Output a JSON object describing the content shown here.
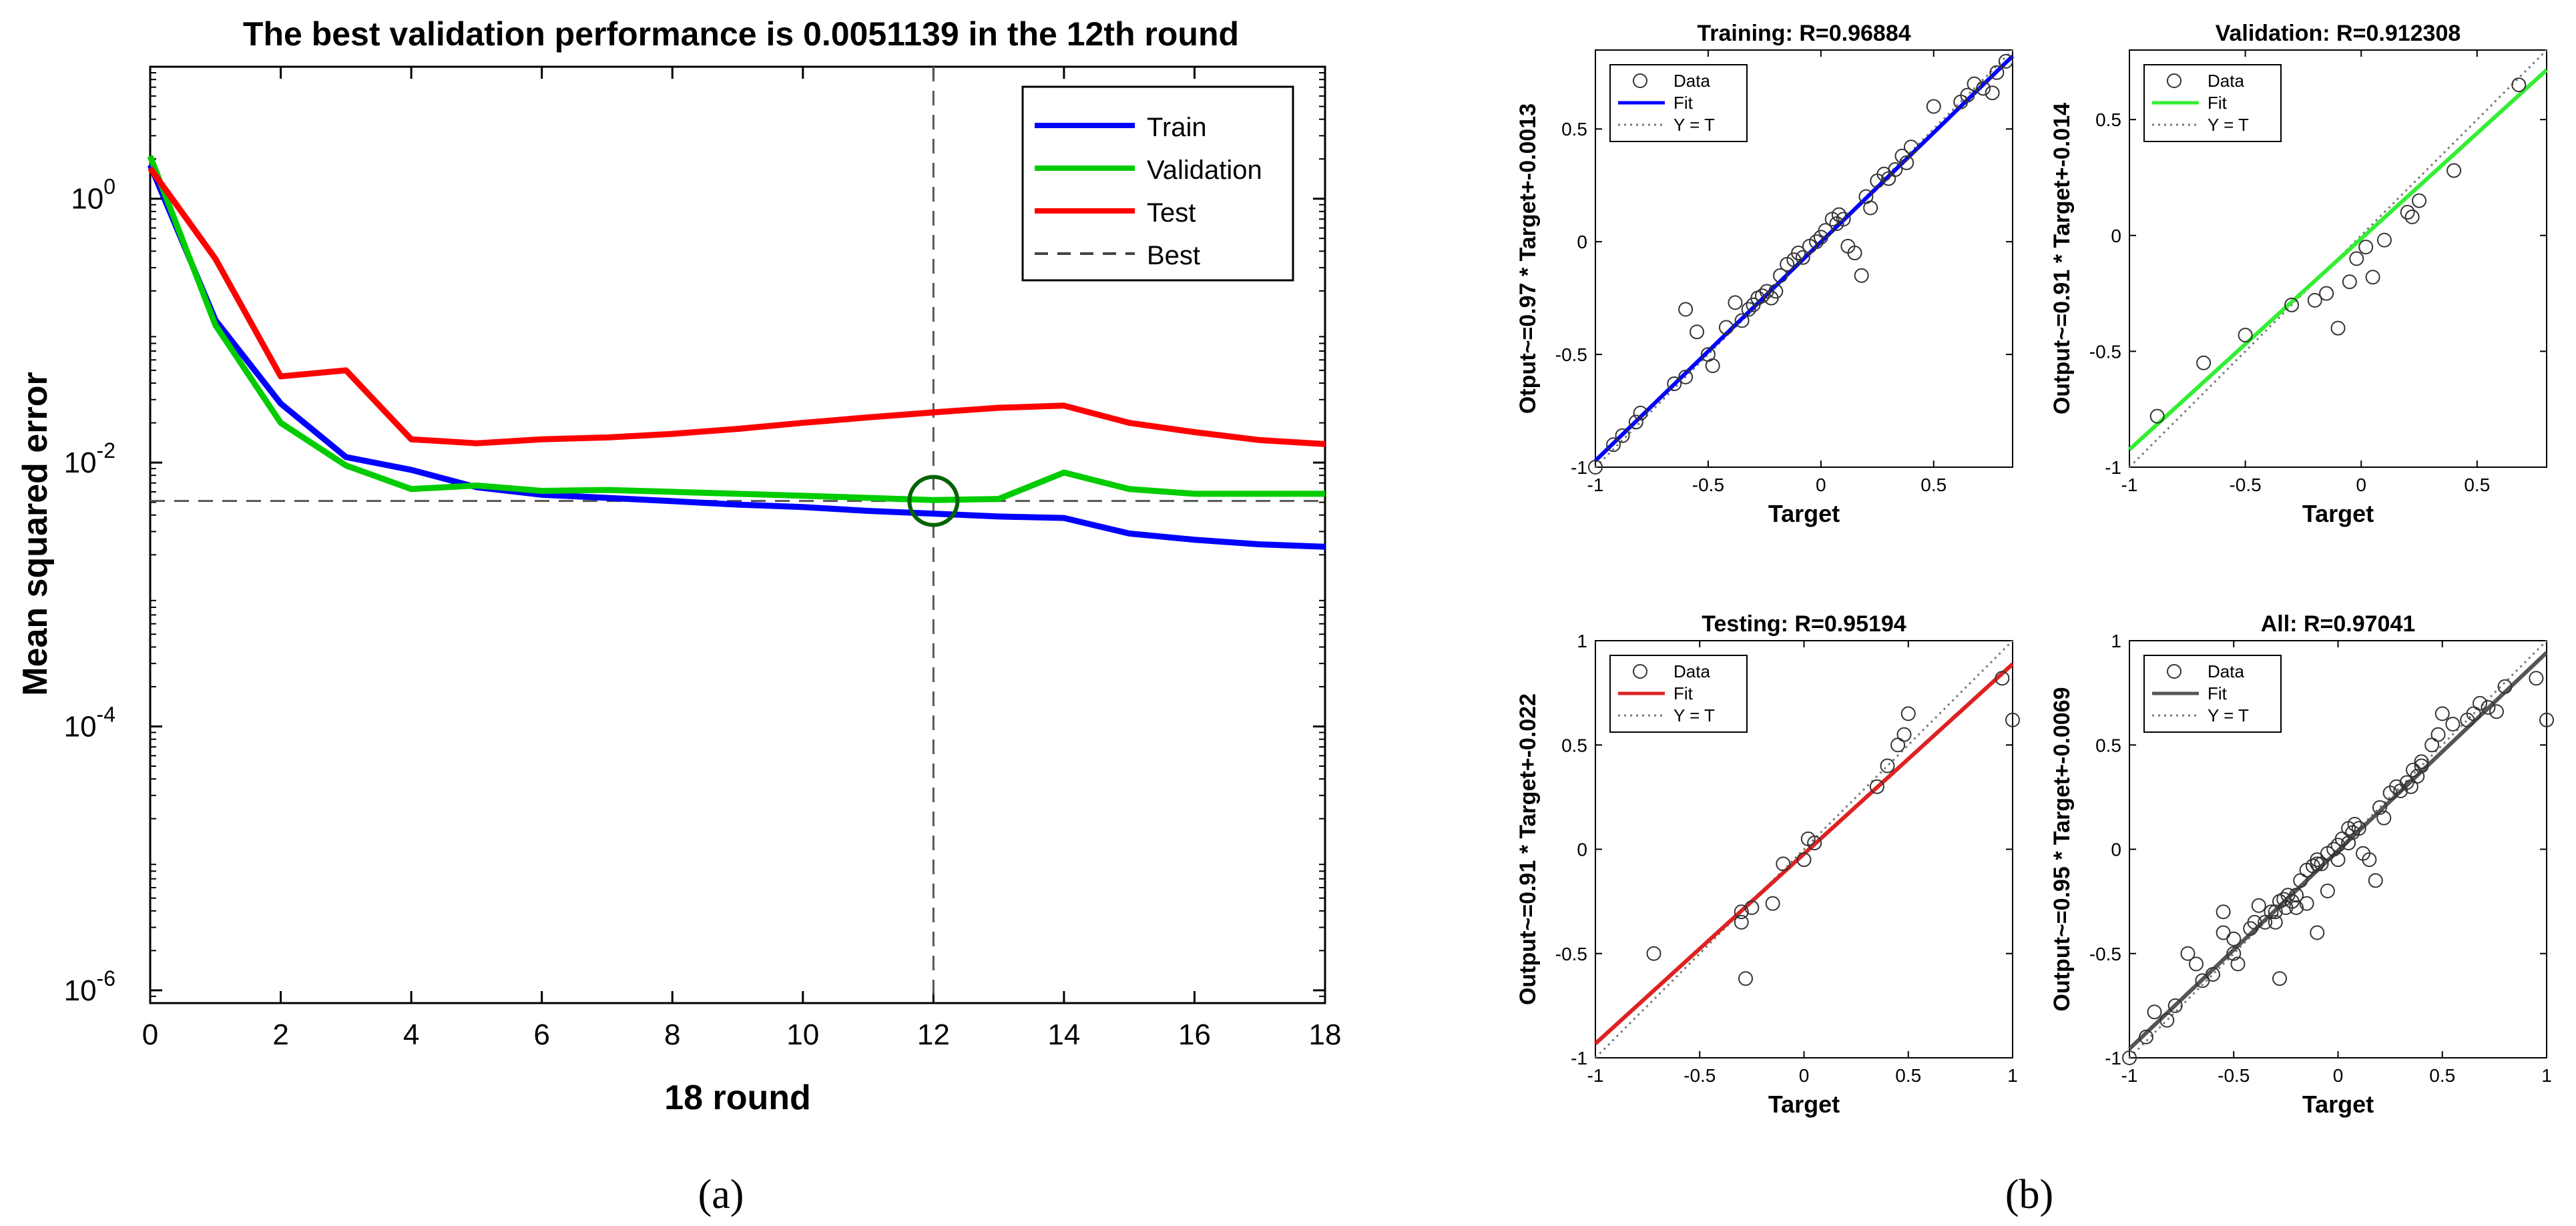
{
  "panel_labels": {
    "a": "(a)",
    "b": "(b)"
  },
  "colors": {
    "train": "#0000ff",
    "validation": "#00cc00",
    "test": "#ff0000",
    "best": "#555555",
    "all": "#555555",
    "marker": "#333333",
    "circle": "#006400"
  },
  "chart_data": [
    {
      "type": "line",
      "id": "performance",
      "title": "The best validation performance is 0.0051139 in the 12th round",
      "xlabel": "18 round",
      "ylabel": "Mean squared error",
      "yscale": "log",
      "xlim": [
        0,
        18
      ],
      "ylim": [
        8e-07,
        10
      ],
      "xticks": [
        0,
        2,
        4,
        6,
        8,
        10,
        12,
        14,
        16,
        18
      ],
      "yticks": [
        {
          "value": 1,
          "base": "10",
          "exp": "0"
        },
        {
          "value": 0.01,
          "base": "10",
          "exp": "-2"
        },
        {
          "value": 0.0001,
          "base": "10",
          "exp": "-4"
        },
        {
          "value": 1e-06,
          "base": "10",
          "exp": "-6"
        }
      ],
      "x": [
        0,
        1,
        2,
        3,
        4,
        5,
        6,
        7,
        8,
        9,
        10,
        11,
        12,
        13,
        14,
        15,
        16,
        17,
        18
      ],
      "series": [
        {
          "name": "Train",
          "color": "#0000ff",
          "values": [
            1.8,
            0.12,
            0.028,
            0.011,
            0.0088,
            0.0065,
            0.0057,
            0.0054,
            0.0051,
            0.0048,
            0.0046,
            0.0043,
            0.0041,
            0.0039,
            0.0038,
            0.0029,
            0.0026,
            0.0024,
            0.0023
          ]
        },
        {
          "name": "Validation",
          "color": "#00cc00",
          "values": [
            2.1,
            0.11,
            0.02,
            0.0095,
            0.0063,
            0.0067,
            0.0061,
            0.0062,
            0.006,
            0.0058,
            0.0056,
            0.0054,
            0.0052,
            0.0053,
            0.0084,
            0.0063,
            0.0058,
            0.0058,
            0.0058
          ]
        },
        {
          "name": "Test",
          "color": "#ff0000",
          "values": [
            1.7,
            0.35,
            0.045,
            0.05,
            0.015,
            0.014,
            0.015,
            0.0155,
            0.0165,
            0.018,
            0.02,
            0.022,
            0.024,
            0.026,
            0.027,
            0.02,
            0.017,
            0.0148,
            0.0138
          ]
        }
      ],
      "best": {
        "name": "Best",
        "x": 12,
        "y": 0.0051139
      },
      "legend": {
        "position": "top-right",
        "entries": [
          "Train",
          "Validation",
          "Test",
          "Best"
        ]
      }
    },
    {
      "type": "scatter",
      "id": "training",
      "title": "Training: R=0.96884",
      "xlabel": "Target",
      "ylabel": "Otput~=0.97 * Target+-0.0013",
      "xlim": [
        -1,
        0.85
      ],
      "ylim": [
        -1,
        0.85
      ],
      "xticks": [
        {
          "v": -1,
          "t": "-1"
        },
        {
          "v": -0.5,
          "t": "-0.5"
        },
        {
          "v": 0,
          "t": "0"
        },
        {
          "v": 0.5,
          "t": "0.5"
        }
      ],
      "yticks": [
        {
          "v": -1,
          "t": "-1"
        },
        {
          "v": -0.5,
          "t": "-0.5"
        },
        {
          "v": 0,
          "t": "0"
        },
        {
          "v": 0.5,
          "t": "0.5"
        }
      ],
      "fit": {
        "slope": 0.97,
        "intercept": -0.0013,
        "color": "#0000ff"
      },
      "legend": [
        "Data",
        "Fit",
        "Y = T"
      ],
      "points": [
        [
          -1,
          -1
        ],
        [
          -0.92,
          -0.9
        ],
        [
          -0.88,
          -0.86
        ],
        [
          -0.82,
          -0.8
        ],
        [
          -0.8,
          -0.76
        ],
        [
          -0.65,
          -0.63
        ],
        [
          -0.6,
          -0.6
        ],
        [
          -0.5,
          -0.5
        ],
        [
          -0.48,
          -0.55
        ],
        [
          -0.55,
          -0.4
        ],
        [
          -0.42,
          -0.38
        ],
        [
          -0.6,
          -0.3
        ],
        [
          -0.38,
          -0.27
        ],
        [
          -0.35,
          -0.35
        ],
        [
          -0.32,
          -0.3
        ],
        [
          -0.3,
          -0.28
        ],
        [
          -0.28,
          -0.25
        ],
        [
          -0.26,
          -0.24
        ],
        [
          -0.24,
          -0.22
        ],
        [
          -0.22,
          -0.25
        ],
        [
          -0.2,
          -0.22
        ],
        [
          -0.18,
          -0.15
        ],
        [
          -0.15,
          -0.1
        ],
        [
          -0.12,
          -0.08
        ],
        [
          -0.1,
          -0.05
        ],
        [
          -0.08,
          -0.07
        ],
        [
          -0.05,
          -0.02
        ],
        [
          -0.02,
          0
        ],
        [
          0,
          0.02
        ],
        [
          0.02,
          0.05
        ],
        [
          0.05,
          0.1
        ],
        [
          0.07,
          0.08
        ],
        [
          0.08,
          0.12
        ],
        [
          0.1,
          0.1
        ],
        [
          0.12,
          -0.02
        ],
        [
          0.15,
          -0.05
        ],
        [
          0.18,
          -0.15
        ],
        [
          0.2,
          0.2
        ],
        [
          0.22,
          0.15
        ],
        [
          0.25,
          0.27
        ],
        [
          0.28,
          0.3
        ],
        [
          0.3,
          0.28
        ],
        [
          0.33,
          0.32
        ],
        [
          0.36,
          0.38
        ],
        [
          0.38,
          0.35
        ],
        [
          0.4,
          0.42
        ],
        [
          0.5,
          0.6
        ],
        [
          0.62,
          0.62
        ],
        [
          0.65,
          0.65
        ],
        [
          0.68,
          0.7
        ],
        [
          0.72,
          0.68
        ],
        [
          0.76,
          0.66
        ],
        [
          0.78,
          0.75
        ],
        [
          0.82,
          0.8
        ]
      ]
    },
    {
      "type": "scatter",
      "id": "validation",
      "title": "Validation: R=0.912308",
      "xlabel": "Target",
      "ylabel": "Output~=0.91 * Target+-0.014",
      "xlim": [
        -1,
        0.8
      ],
      "ylim": [
        -1,
        0.8
      ],
      "xticks": [
        {
          "v": -1,
          "t": "-1"
        },
        {
          "v": -0.5,
          "t": "-0.5"
        },
        {
          "v": 0,
          "t": "0"
        },
        {
          "v": 0.5,
          "t": "0.5"
        }
      ],
      "yticks": [
        {
          "v": -1,
          "t": "-1"
        },
        {
          "v": -0.5,
          "t": "-0.5"
        },
        {
          "v": 0,
          "t": "0"
        },
        {
          "v": 0.5,
          "t": "0.5"
        }
      ],
      "fit": {
        "slope": 0.91,
        "intercept": -0.014,
        "color": "#33ee33"
      },
      "legend": [
        "Data",
        "Fit",
        "Y = T"
      ],
      "points": [
        [
          -0.88,
          -0.78
        ],
        [
          -0.68,
          -0.55
        ],
        [
          -0.5,
          -0.43
        ],
        [
          -0.3,
          -0.3
        ],
        [
          -0.2,
          -0.28
        ],
        [
          -0.15,
          -0.25
        ],
        [
          -0.1,
          -0.4
        ],
        [
          -0.05,
          -0.2
        ],
        [
          -0.02,
          -0.1
        ],
        [
          0.02,
          -0.05
        ],
        [
          0.05,
          -0.18
        ],
        [
          0.1,
          -0.02
        ],
        [
          0.2,
          0.1
        ],
        [
          0.22,
          0.08
        ],
        [
          0.25,
          0.15
        ],
        [
          0.4,
          0.28
        ],
        [
          0.68,
          0.65
        ]
      ]
    },
    {
      "type": "scatter",
      "id": "testing",
      "title": "Testing: R=0.95194",
      "xlabel": "Target",
      "ylabel": "Output~=0.91 * Target+-0.022",
      "xlim": [
        -1,
        1
      ],
      "ylim": [
        -1,
        1
      ],
      "xticks": [
        {
          "v": -1,
          "t": "-1"
        },
        {
          "v": -0.5,
          "t": "-0.5"
        },
        {
          "v": 0,
          "t": "0"
        },
        {
          "v": 0.5,
          "t": "0.5"
        },
        {
          "v": 1,
          "t": "1"
        }
      ],
      "yticks": [
        {
          "v": -1,
          "t": "-1"
        },
        {
          "v": -0.5,
          "t": "-0.5"
        },
        {
          "v": 0,
          "t": "0"
        },
        {
          "v": 0.5,
          "t": "0.5"
        },
        {
          "v": 1,
          "t": "1"
        }
      ],
      "fit": {
        "slope": 0.91,
        "intercept": -0.022,
        "color": "#dd2222"
      },
      "legend": [
        "Data",
        "Fit",
        "Y = T"
      ],
      "points": [
        [
          -0.72,
          -0.5
        ],
        [
          -0.3,
          -0.3
        ],
        [
          -0.3,
          -0.35
        ],
        [
          -0.28,
          -0.62
        ],
        [
          -0.25,
          -0.28
        ],
        [
          -0.15,
          -0.26
        ],
        [
          -0.1,
          -0.07
        ],
        [
          0,
          -0.05
        ],
        [
          0.02,
          0.05
        ],
        [
          0.05,
          0.03
        ],
        [
          0.35,
          0.3
        ],
        [
          0.4,
          0.4
        ],
        [
          0.45,
          0.5
        ],
        [
          0.48,
          0.55
        ],
        [
          0.5,
          0.65
        ],
        [
          0.95,
          0.82
        ],
        [
          1,
          0.62
        ]
      ]
    },
    {
      "type": "scatter",
      "id": "all",
      "title": "All: R=0.97041",
      "xlabel": "Target",
      "ylabel": "Output~=0.95 * Target+-0.0069",
      "xlim": [
        -1,
        1
      ],
      "ylim": [
        -1,
        1
      ],
      "xticks": [
        {
          "v": -1,
          "t": "-1"
        },
        {
          "v": -0.5,
          "t": "-0.5"
        },
        {
          "v": 0,
          "t": "0"
        },
        {
          "v": 0.5,
          "t": "0.5"
        },
        {
          "v": 1,
          "t": "1"
        }
      ],
      "yticks": [
        {
          "v": -1,
          "t": "-1"
        },
        {
          "v": -0.5,
          "t": "-0.5"
        },
        {
          "v": 0,
          "t": "0"
        },
        {
          "v": 0.5,
          "t": "0.5"
        },
        {
          "v": 1,
          "t": "1"
        }
      ],
      "fit": {
        "slope": 0.95,
        "intercept": -0.0069,
        "color": "#555555"
      },
      "legend": [
        "Data",
        "Fit",
        "Y = T"
      ],
      "points": [
        [
          -1,
          -1
        ],
        [
          -0.92,
          -0.9
        ],
        [
          -0.88,
          -0.78
        ],
        [
          -0.82,
          -0.82
        ],
        [
          -0.78,
          -0.75
        ],
        [
          -0.72,
          -0.5
        ],
        [
          -0.68,
          -0.55
        ],
        [
          -0.65,
          -0.63
        ],
        [
          -0.6,
          -0.6
        ],
        [
          -0.55,
          -0.4
        ],
        [
          -0.55,
          -0.3
        ],
        [
          -0.5,
          -0.5
        ],
        [
          -0.5,
          -0.43
        ],
        [
          -0.48,
          -0.55
        ],
        [
          -0.42,
          -0.38
        ],
        [
          -0.4,
          -0.35
        ],
        [
          -0.38,
          -0.27
        ],
        [
          -0.35,
          -0.35
        ],
        [
          -0.32,
          -0.3
        ],
        [
          -0.3,
          -0.3
        ],
        [
          -0.3,
          -0.35
        ],
        [
          -0.28,
          -0.62
        ],
        [
          -0.28,
          -0.25
        ],
        [
          -0.26,
          -0.24
        ],
        [
          -0.25,
          -0.28
        ],
        [
          -0.24,
          -0.22
        ],
        [
          -0.22,
          -0.25
        ],
        [
          -0.2,
          -0.22
        ],
        [
          -0.2,
          -0.28
        ],
        [
          -0.18,
          -0.15
        ],
        [
          -0.15,
          -0.1
        ],
        [
          -0.15,
          -0.26
        ],
        [
          -0.12,
          -0.08
        ],
        [
          -0.1,
          -0.05
        ],
        [
          -0.1,
          -0.4
        ],
        [
          -0.1,
          -0.07
        ],
        [
          -0.08,
          -0.07
        ],
        [
          -0.05,
          -0.02
        ],
        [
          -0.05,
          -0.2
        ],
        [
          -0.02,
          0
        ],
        [
          0,
          0.02
        ],
        [
          0,
          -0.05
        ],
        [
          0.02,
          0.05
        ],
        [
          0.05,
          0.1
        ],
        [
          0.05,
          0.03
        ],
        [
          0.07,
          0.08
        ],
        [
          0.08,
          0.12
        ],
        [
          0.1,
          0.1
        ],
        [
          0.12,
          -0.02
        ],
        [
          0.15,
          -0.05
        ],
        [
          0.18,
          -0.15
        ],
        [
          0.2,
          0.2
        ],
        [
          0.22,
          0.15
        ],
        [
          0.25,
          0.27
        ],
        [
          0.28,
          0.3
        ],
        [
          0.3,
          0.28
        ],
        [
          0.33,
          0.32
        ],
        [
          0.35,
          0.3
        ],
        [
          0.36,
          0.38
        ],
        [
          0.38,
          0.35
        ],
        [
          0.4,
          0.4
        ],
        [
          0.4,
          0.42
        ],
        [
          0.45,
          0.5
        ],
        [
          0.48,
          0.55
        ],
        [
          0.5,
          0.65
        ],
        [
          0.55,
          0.6
        ],
        [
          0.62,
          0.62
        ],
        [
          0.65,
          0.65
        ],
        [
          0.68,
          0.7
        ],
        [
          0.72,
          0.68
        ],
        [
          0.76,
          0.66
        ],
        [
          0.8,
          0.78
        ],
        [
          0.95,
          0.82
        ],
        [
          1,
          0.62
        ]
      ]
    }
  ]
}
